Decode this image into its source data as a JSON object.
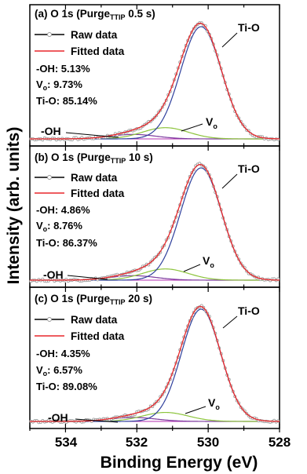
{
  "chart_data": {
    "type": "line",
    "xlabel": "Binding Energy (eV)",
    "ylabel": "Intensity (arb. units)",
    "xlim": [
      535,
      528
    ],
    "x_reversed": true,
    "x_ticks": [
      "534",
      "532",
      "530",
      "528"
    ],
    "legend_placement": "top-left",
    "colors": {
      "raw": "#000000",
      "raw_marker": "#9a9a9a",
      "fitted": "#e8272b",
      "ti_o": "#2e3f9c",
      "vo": "#8dc43d",
      "oh": "#7b3a9e",
      "baseline": "#b32fb2"
    },
    "legend": {
      "raw": "Raw data",
      "fitted": "Fitted data"
    },
    "panels": [
      {
        "label_prefix": "(a) O 1s (Purge",
        "label_sub": "TTIP",
        "label_suffix": " 0.5 s)",
        "pct_oh": "-OH: 5.13%",
        "pct_vo_main": "V",
        "pct_vo_sub": "o",
        "pct_vo_value": ": 9.73%",
        "pct_tio": "Ti-O: 85.14%",
        "peak_tio_label": "Ti-O",
        "peak_vo_main": "V",
        "peak_vo_sub": "o",
        "peak_oh_label": "-OH",
        "series": [
          {
            "name": "Ti-O",
            "center": 530.2,
            "fwhm": 1.35,
            "height": 1.0
          },
          {
            "name": "Vo",
            "center": 531.2,
            "fwhm": 1.5,
            "height": 0.1
          },
          {
            "name": "-OH",
            "center": 532.1,
            "fwhm": 1.5,
            "height": 0.04
          }
        ]
      },
      {
        "label_prefix": "(b) O 1s (Purge",
        "label_sub": "TTIP",
        "label_suffix": " 10 s)",
        "pct_oh": "-OH: 4.86%",
        "pct_vo_main": "V",
        "pct_vo_sub": "o",
        "pct_vo_value": ": 8.76%",
        "pct_tio": "Ti-O: 86.37%",
        "peak_tio_label": "Ti-O",
        "peak_vo_main": "V",
        "peak_vo_sub": "o",
        "peak_oh_label": "-OH",
        "series": [
          {
            "name": "Ti-O",
            "center": 530.2,
            "fwhm": 1.35,
            "height": 1.0
          },
          {
            "name": "Vo",
            "center": 531.2,
            "fwhm": 1.5,
            "height": 0.1
          },
          {
            "name": "-OH",
            "center": 532.1,
            "fwhm": 1.5,
            "height": 0.04
          }
        ]
      },
      {
        "label_prefix": "(c) O 1s (Purge",
        "label_sub": "TTIP",
        "label_suffix": " 20 s)",
        "pct_oh": "-OH: 4.35%",
        "pct_vo_main": "V",
        "pct_vo_sub": "o",
        "pct_vo_value": ": 6.57%",
        "pct_tio": "Ti-O: 89.08%",
        "peak_tio_label": "Ti-O",
        "peak_vo_main": "V",
        "peak_vo_sub": "o",
        "peak_oh_label": "-OH",
        "series": [
          {
            "name": "Ti-O",
            "center": 530.2,
            "fwhm": 1.3,
            "height": 1.0
          },
          {
            "name": "Vo",
            "center": 531.2,
            "fwhm": 1.5,
            "height": 0.08
          },
          {
            "name": "-OH",
            "center": 532.1,
            "fwhm": 1.5,
            "height": 0.035
          }
        ]
      }
    ]
  }
}
